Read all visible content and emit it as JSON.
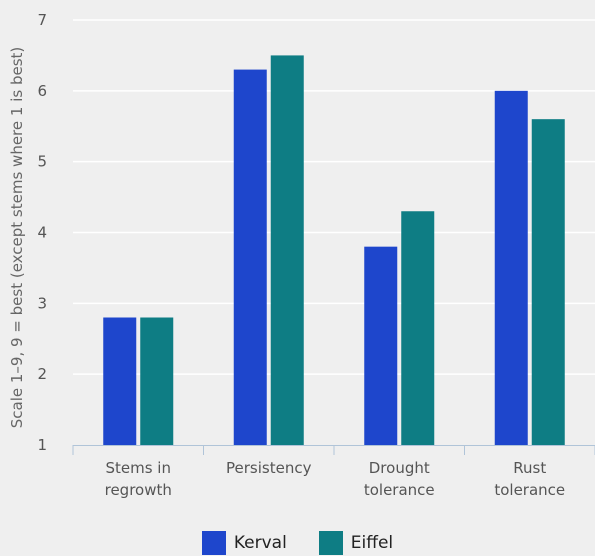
{
  "chart_data": {
    "type": "bar",
    "title": "",
    "xlabel": "",
    "ylabel": "Scale 1–9, 9 = best (except stems where 1 is best)",
    "ylim": [
      1,
      7
    ],
    "yticks": [
      "1",
      "2",
      "3",
      "4",
      "5",
      "6",
      "7"
    ],
    "grid": true,
    "legend_position": "bottom",
    "categories": [
      [
        "Stems in",
        "regrowth"
      ],
      [
        "Persistency"
      ],
      [
        "Drought",
        "tolerance"
      ],
      [
        "Rust",
        "tolerance"
      ]
    ],
    "series": [
      {
        "name": "Kerval",
        "color": "#1e46cc",
        "values": [
          2.8,
          6.3,
          3.8,
          6.0
        ]
      },
      {
        "name": "Eiffel",
        "color": "#0e7d84",
        "values": [
          2.8,
          6.5,
          4.3,
          5.6
        ]
      }
    ]
  }
}
